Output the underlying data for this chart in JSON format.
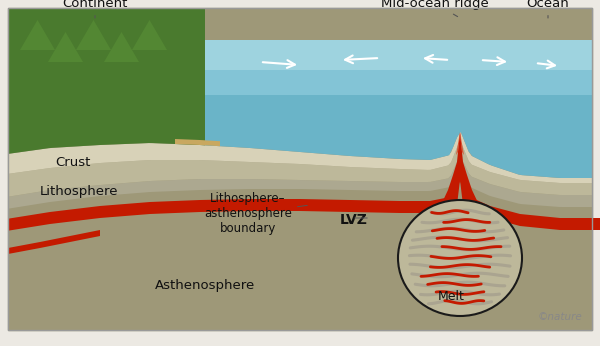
{
  "fig_bg": "#ece9e3",
  "box_bg": "#9e9878",
  "ocean_deep": "#6ab4c8",
  "ocean_light": "#9dd4e4",
  "ocean_lighter": "#c2e8f0",
  "continent_green": "#4a7a2e",
  "continent_green2": "#5c9438",
  "continent_sand": "#c8a860",
  "crust_top": "#d8d2b8",
  "crust_mid": "#ccc6aa",
  "litho_color": "#bdb89a",
  "litho_dark": "#aca890",
  "asthen_color": "#9e9878",
  "red_main": "#c41a00",
  "red_bright": "#e03010",
  "red_glow": "#e86040",
  "border_col": "#999999",
  "label_col": "#111111",
  "arrow_col": "#ffffff",
  "copyright": "©nature",
  "labels": {
    "continent": "Continent",
    "mid_ocean_ridge": "Mid-ocean ridge",
    "ocean": "Ocean",
    "crust": "Crust",
    "lithosphere": "Lithosphere",
    "boundary": "Lithosphere–\nasthenosphere\nboundary",
    "lvz": "LVZ",
    "asthenosphere": "Asthenosphere",
    "melt": "Melt"
  }
}
